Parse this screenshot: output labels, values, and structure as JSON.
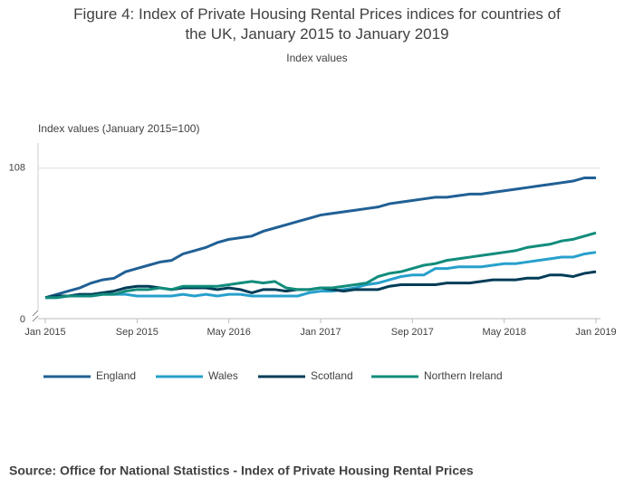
{
  "chart_data": {
    "type": "line",
    "title": "Figure 4: Index of Private Housing Rental Prices indices for countries of the UK, January 2015 to January 2019",
    "subtitle": "Index values",
    "y_label": "Index values (January 2015=100)",
    "y_break_label": "0",
    "source": "Source: Office for National Statistics - Index of Private Housing Rental Prices",
    "categories": [
      "Jan 2015",
      null,
      null,
      null,
      null,
      null,
      null,
      null,
      "Sep 2015",
      null,
      null,
      null,
      null,
      null,
      null,
      null,
      "May 2016",
      null,
      null,
      null,
      null,
      null,
      null,
      null,
      "Jan 2017",
      null,
      null,
      null,
      null,
      null,
      null,
      null,
      "Sep 2017",
      null,
      null,
      null,
      null,
      null,
      null,
      null,
      "May 2018",
      null,
      null,
      null,
      null,
      null,
      null,
      null,
      "Jan 2019"
    ],
    "series": [
      {
        "name": "England",
        "color": "#206095",
        "values": [
          100.0,
          100.2,
          100.4,
          100.6,
          100.9,
          101.1,
          101.2,
          101.6,
          101.8,
          102.0,
          102.2,
          102.3,
          102.7,
          102.9,
          103.1,
          103.4,
          103.6,
          103.7,
          103.8,
          104.1,
          104.3,
          104.5,
          104.7,
          104.9,
          105.1,
          105.2,
          105.3,
          105.4,
          105.5,
          105.6,
          105.8,
          105.9,
          106.0,
          106.1,
          106.2,
          106.2,
          106.3,
          106.4,
          106.4,
          106.5,
          106.6,
          106.7,
          106.8,
          106.9,
          107.0,
          107.1,
          107.2,
          107.4,
          107.4
        ]
      },
      {
        "name": "Wales",
        "color": "#27a0cc",
        "values": [
          100.0,
          100.0,
          100.1,
          100.1,
          100.1,
          100.2,
          100.2,
          100.2,
          100.1,
          100.1,
          100.1,
          100.1,
          100.2,
          100.1,
          100.2,
          100.1,
          100.2,
          100.2,
          100.1,
          100.1,
          100.1,
          100.1,
          100.1,
          100.3,
          100.4,
          100.4,
          100.5,
          100.6,
          100.8,
          100.9,
          101.1,
          101.3,
          101.4,
          101.4,
          101.8,
          101.8,
          101.9,
          101.9,
          101.9,
          102.0,
          102.1,
          102.1,
          102.2,
          102.3,
          102.4,
          102.5,
          102.5,
          102.7,
          102.8
        ]
      },
      {
        "name": "Scotland",
        "color": "#003c57",
        "values": [
          100.0,
          100.1,
          100.1,
          100.2,
          100.2,
          100.3,
          100.4,
          100.6,
          100.7,
          100.7,
          100.6,
          100.5,
          100.6,
          100.6,
          100.6,
          100.5,
          100.6,
          100.5,
          100.3,
          100.5,
          100.5,
          100.4,
          100.5,
          100.5,
          100.6,
          100.5,
          100.4,
          100.5,
          100.5,
          100.5,
          100.7,
          100.8,
          100.8,
          100.8,
          100.8,
          100.9,
          100.9,
          100.9,
          101.0,
          101.1,
          101.1,
          101.1,
          101.2,
          101.2,
          101.4,
          101.4,
          101.3,
          101.5,
          101.6
        ]
      },
      {
        "name": "Northern Ireland",
        "color": "#118c7b",
        "values": [
          100.0,
          100.0,
          100.1,
          100.1,
          100.1,
          100.2,
          100.2,
          100.4,
          100.5,
          100.5,
          100.6,
          100.5,
          100.7,
          100.7,
          100.7,
          100.7,
          100.8,
          100.9,
          101.0,
          100.9,
          101.0,
          100.6,
          100.5,
          100.5,
          100.6,
          100.6,
          100.7,
          100.8,
          100.9,
          101.3,
          101.5,
          101.6,
          101.8,
          102.0,
          102.1,
          102.3,
          102.4,
          102.5,
          102.6,
          102.7,
          102.8,
          102.9,
          103.1,
          103.2,
          103.3,
          103.5,
          103.6,
          103.8,
          104.0
        ]
      }
    ],
    "ylim": [
      98.7,
      108.6
    ],
    "yticks": [
      108
    ],
    "grid": true
  }
}
